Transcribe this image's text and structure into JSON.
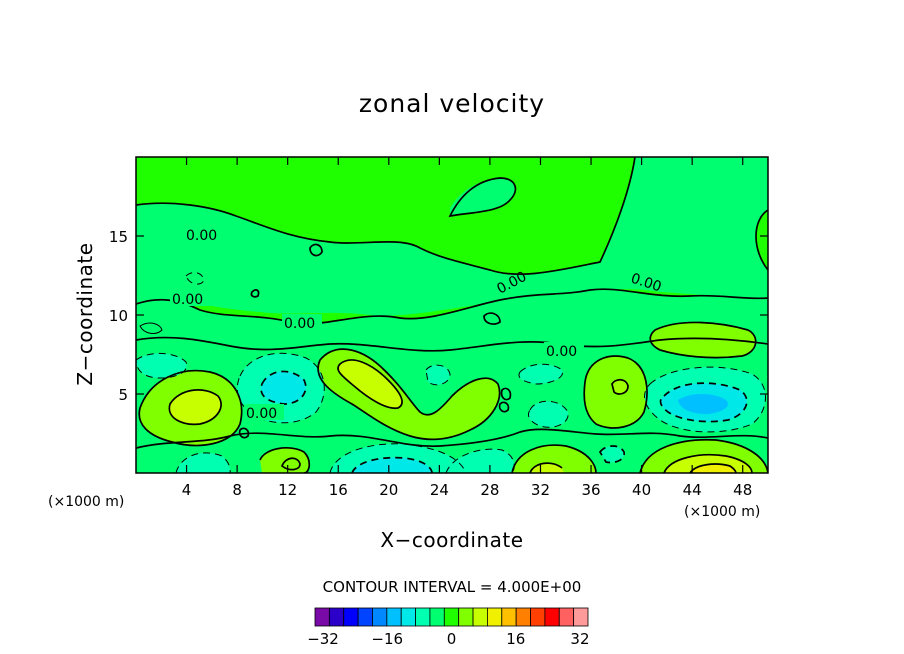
{
  "chart_data": {
    "type": "contour",
    "title": "zonal velocity",
    "xlabel": "X−coordinate",
    "ylabel": "Z−coordinate",
    "x_unit": "(×1000 m)",
    "z_unit": "(×1000 m)",
    "xlim": [
      0,
      50
    ],
    "ylim": [
      0,
      20
    ],
    "x_ticks": [
      4,
      8,
      12,
      16,
      20,
      24,
      28,
      32,
      36,
      40,
      44,
      48
    ],
    "y_ticks": [
      5,
      10,
      15
    ],
    "contour_interval_text": "CONTOUR INTERVAL = 4.000E+00",
    "contour_interval": 4.0,
    "contour_labels": [
      "0.00",
      "0.00",
      "0.00",
      "0.00",
      "0.00",
      "0.00"
    ],
    "colorbar": {
      "levels": [
        -34,
        -30,
        -26,
        -22,
        -18,
        -14,
        -10,
        -6,
        -2,
        2,
        6,
        10,
        14,
        18,
        22,
        26,
        30,
        34
      ],
      "tick_values": [
        -32,
        -16,
        0,
        16,
        32
      ],
      "tick_labels": [
        "−32",
        "−16",
        "0",
        "16",
        "32"
      ],
      "colors": [
        "#7a0aa8",
        "#2b00c8",
        "#0000ff",
        "#0044ff",
        "#0088ff",
        "#00c0ff",
        "#00e8e8",
        "#00ffb0",
        "#00ff70",
        "#20ff00",
        "#80ff00",
        "#c8ff00",
        "#f0f000",
        "#ffc000",
        "#ff8000",
        "#ff4000",
        "#ff0000",
        "#ff6060",
        "#ff9a9a"
      ]
    },
    "features": [
      {
        "kind": "max",
        "x": 5.5,
        "z": 4.5,
        "value": 8
      },
      {
        "kind": "min",
        "x": 11.5,
        "z": 5.5,
        "value": -6
      },
      {
        "kind": "max",
        "x": 19,
        "z": 5.5,
        "value": 8
      },
      {
        "kind": "min",
        "x": 21,
        "z": 0.5,
        "value": -6
      },
      {
        "kind": "max",
        "x": 32,
        "z": 1,
        "value": 6
      },
      {
        "kind": "max",
        "x": 38,
        "z": 5,
        "value": 6
      },
      {
        "kind": "min",
        "x": 44,
        "z": 4.5,
        "value": -10
      },
      {
        "kind": "max",
        "x": 45,
        "z": 0.8,
        "value": 12
      }
    ]
  }
}
